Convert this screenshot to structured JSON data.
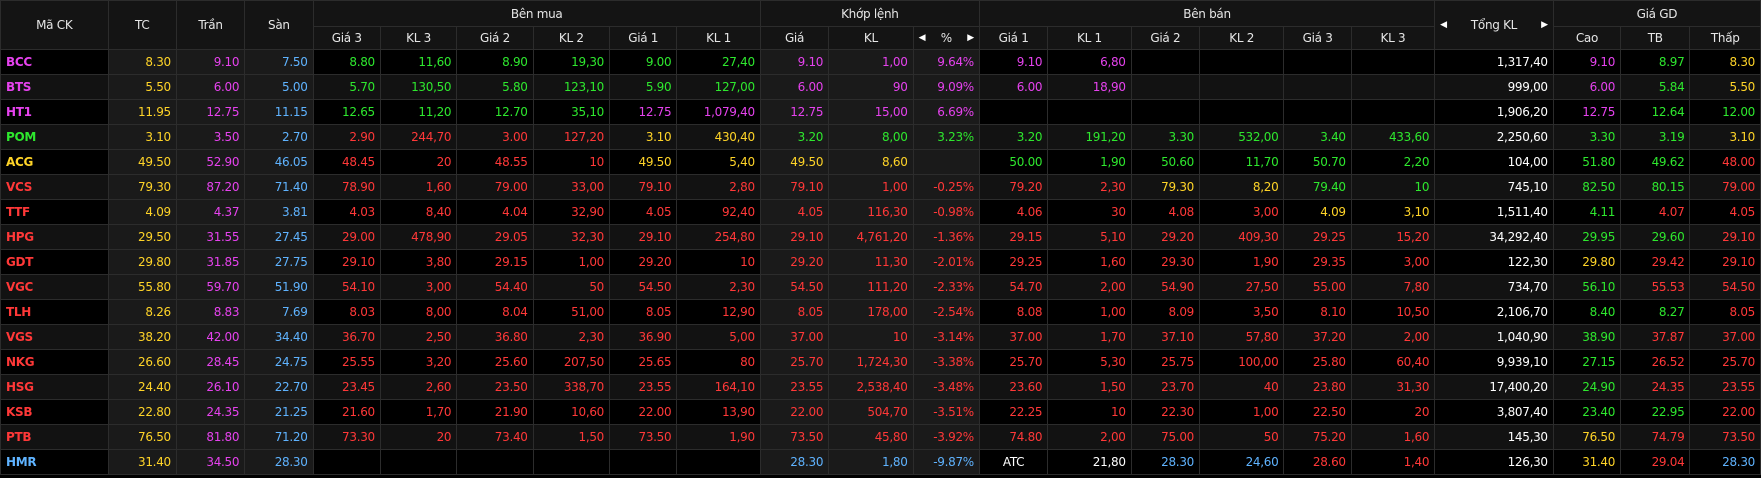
{
  "colors": {
    "up": "#2ee82e",
    "down": "#ff3838",
    "ceiling": "#e642ee",
    "floor": "#5fb3ff",
    "ref": "#ffd428"
  },
  "headers": {
    "symbol": "Mã CK",
    "ref": "TC",
    "ceil": "Trần",
    "floor": "Sàn",
    "buy_group": "Bên mua",
    "match_group": "Khớp lệnh",
    "sell_group": "Bên bán",
    "total_vol": "Tổng KL",
    "price_group": "Giá GD",
    "buy_cols": [
      "Giá 3",
      "KL 3",
      "Giá 2",
      "KL 2",
      "Giá 1",
      "KL 1"
    ],
    "match_cols": [
      "Giá",
      "KL",
      "%"
    ],
    "sell_cols": [
      "Giá 1",
      "KL 1",
      "Giá 2",
      "KL 2",
      "Giá 3",
      "KL 3"
    ],
    "price_cols": [
      "Cao",
      "TB",
      "Thấp"
    ],
    "icons": {
      "left": "caret-left-icon",
      "right": "caret-right-icon"
    }
  },
  "rows": [
    {
      "sym": "BCC",
      "sc": "ce",
      "tc": "8.30",
      "tran": "9.10",
      "san": "7.50",
      "b3p": [
        "8.80",
        "up"
      ],
      "b3v": [
        "11,60",
        "up"
      ],
      "b2p": [
        "8.90",
        "up"
      ],
      "b2v": [
        "19,30",
        "up"
      ],
      "b1p": [
        "9.00",
        "up"
      ],
      "b1v": [
        "27,40",
        "up"
      ],
      "mp": [
        "9.10",
        "ce"
      ],
      "mv": [
        "1,00",
        "ce"
      ],
      "mpct": [
        "9.64%",
        "ce"
      ],
      "s1p": [
        "9.10",
        "ce"
      ],
      "s1v": [
        "6,80",
        "ce"
      ],
      "s2p": [
        "",
        ""
      ],
      "s2v": [
        "",
        ""
      ],
      "s3p": [
        "",
        ""
      ],
      "s3v": [
        "",
        ""
      ],
      "tot": "1,317,40",
      "hi": [
        "9.10",
        "ce"
      ],
      "avg": [
        "8.97",
        "up"
      ],
      "lo": [
        "8.30",
        "ref"
      ]
    },
    {
      "sym": "BTS",
      "sc": "ce",
      "tc": "5.50",
      "tran": "6.00",
      "san": "5.00",
      "b3p": [
        "5.70",
        "up"
      ],
      "b3v": [
        "130,50",
        "up"
      ],
      "b2p": [
        "5.80",
        "up"
      ],
      "b2v": [
        "123,10",
        "up"
      ],
      "b1p": [
        "5.90",
        "up"
      ],
      "b1v": [
        "127,00",
        "up"
      ],
      "mp": [
        "6.00",
        "ce"
      ],
      "mv": [
        "90",
        "ce"
      ],
      "mpct": [
        "9.09%",
        "ce"
      ],
      "s1p": [
        "6.00",
        "ce"
      ],
      "s1v": [
        "18,90",
        "ce"
      ],
      "s2p": [
        "",
        ""
      ],
      "s2v": [
        "",
        ""
      ],
      "s3p": [
        "",
        ""
      ],
      "s3v": [
        "",
        ""
      ],
      "tot": "999,00",
      "hi": [
        "6.00",
        "ce"
      ],
      "avg": [
        "5.84",
        "up"
      ],
      "lo": [
        "5.50",
        "ref"
      ]
    },
    {
      "sym": "HT1",
      "sc": "ce",
      "tc": "11.95",
      "tran": "12.75",
      "san": "11.15",
      "b3p": [
        "12.65",
        "up"
      ],
      "b3v": [
        "11,20",
        "up"
      ],
      "b2p": [
        "12.70",
        "up"
      ],
      "b2v": [
        "35,10",
        "up"
      ],
      "b1p": [
        "12.75",
        "ce"
      ],
      "b1v": [
        "1,079,40",
        "ce"
      ],
      "mp": [
        "12.75",
        "ce"
      ],
      "mv": [
        "15,00",
        "ce"
      ],
      "mpct": [
        "6.69%",
        "ce"
      ],
      "s1p": [
        "",
        ""
      ],
      "s1v": [
        "",
        ""
      ],
      "s2p": [
        "",
        ""
      ],
      "s2v": [
        "",
        ""
      ],
      "s3p": [
        "",
        ""
      ],
      "s3v": [
        "",
        ""
      ],
      "tot": "1,906,20",
      "hi": [
        "12.75",
        "ce"
      ],
      "avg": [
        "12.64",
        "up"
      ],
      "lo": [
        "12.00",
        "up"
      ]
    },
    {
      "sym": "POM",
      "sc": "up",
      "tc": "3.10",
      "tran": "3.50",
      "san": "2.70",
      "b3p": [
        "2.90",
        "dn"
      ],
      "b3v": [
        "244,70",
        "dn"
      ],
      "b2p": [
        "3.00",
        "dn"
      ],
      "b2v": [
        "127,20",
        "dn"
      ],
      "b1p": [
        "3.10",
        "ref"
      ],
      "b1v": [
        "430,40",
        "ref"
      ],
      "mp": [
        "3.20",
        "up"
      ],
      "mv": [
        "8,00",
        "up"
      ],
      "mpct": [
        "3.23%",
        "up"
      ],
      "s1p": [
        "3.20",
        "up"
      ],
      "s1v": [
        "191,20",
        "up"
      ],
      "s2p": [
        "3.30",
        "up"
      ],
      "s2v": [
        "532,00",
        "up"
      ],
      "s3p": [
        "3.40",
        "up"
      ],
      "s3v": [
        "433,60",
        "up"
      ],
      "tot": "2,250,60",
      "hi": [
        "3.30",
        "up"
      ],
      "avg": [
        "3.19",
        "up"
      ],
      "lo": [
        "3.10",
        "ref"
      ]
    },
    {
      "sym": "ACG",
      "sc": "ref",
      "tc": "49.50",
      "tran": "52.90",
      "san": "46.05",
      "b3p": [
        "48.45",
        "dn"
      ],
      "b3v": [
        "20",
        "dn"
      ],
      "b2p": [
        "48.55",
        "dn"
      ],
      "b2v": [
        "10",
        "dn"
      ],
      "b1p": [
        "49.50",
        "ref"
      ],
      "b1v": [
        "5,40",
        "ref"
      ],
      "mp": [
        "49.50",
        "ref"
      ],
      "mv": [
        "8,60",
        "ref"
      ],
      "mpct": [
        "",
        ""
      ],
      "s1p": [
        "50.00",
        "up"
      ],
      "s1v": [
        "1,90",
        "up"
      ],
      "s2p": [
        "50.60",
        "up"
      ],
      "s2v": [
        "11,70",
        "up"
      ],
      "s3p": [
        "50.70",
        "up"
      ],
      "s3v": [
        "2,20",
        "up"
      ],
      "tot": "104,00",
      "hi": [
        "51.80",
        "up"
      ],
      "avg": [
        "49.62",
        "up"
      ],
      "lo": [
        "48.00",
        "dn"
      ]
    },
    {
      "sym": "VCS",
      "sc": "dn",
      "tc": "79.30",
      "tran": "87.20",
      "san": "71.40",
      "b3p": [
        "78.90",
        "dn"
      ],
      "b3v": [
        "1,60",
        "dn"
      ],
      "b2p": [
        "79.00",
        "dn"
      ],
      "b2v": [
        "33,00",
        "dn"
      ],
      "b1p": [
        "79.10",
        "dn"
      ],
      "b1v": [
        "2,80",
        "dn"
      ],
      "mp": [
        "79.10",
        "dn"
      ],
      "mv": [
        "1,00",
        "dn"
      ],
      "mpct": [
        "-0.25%",
        "dn"
      ],
      "s1p": [
        "79.20",
        "dn"
      ],
      "s1v": [
        "2,30",
        "dn"
      ],
      "s2p": [
        "79.30",
        "ref"
      ],
      "s2v": [
        "8,20",
        "ref"
      ],
      "s3p": [
        "79.40",
        "up"
      ],
      "s3v": [
        "10",
        "up"
      ],
      "tot": "745,10",
      "hi": [
        "82.50",
        "up"
      ],
      "avg": [
        "80.15",
        "up"
      ],
      "lo": [
        "79.00",
        "dn"
      ]
    },
    {
      "sym": "TTF",
      "sc": "dn",
      "tc": "4.09",
      "tran": "4.37",
      "san": "3.81",
      "b3p": [
        "4.03",
        "dn"
      ],
      "b3v": [
        "8,40",
        "dn"
      ],
      "b2p": [
        "4.04",
        "dn"
      ],
      "b2v": [
        "32,90",
        "dn"
      ],
      "b1p": [
        "4.05",
        "dn"
      ],
      "b1v": [
        "92,40",
        "dn"
      ],
      "mp": [
        "4.05",
        "dn"
      ],
      "mv": [
        "116,30",
        "dn"
      ],
      "mpct": [
        "-0.98%",
        "dn"
      ],
      "s1p": [
        "4.06",
        "dn"
      ],
      "s1v": [
        "30",
        "dn"
      ],
      "s2p": [
        "4.08",
        "dn"
      ],
      "s2v": [
        "3,00",
        "dn"
      ],
      "s3p": [
        "4.09",
        "ref"
      ],
      "s3v": [
        "3,10",
        "ref"
      ],
      "tot": "1,511,40",
      "hi": [
        "4.11",
        "up"
      ],
      "avg": [
        "4.07",
        "dn"
      ],
      "lo": [
        "4.05",
        "dn"
      ]
    },
    {
      "sym": "HPG",
      "sc": "dn",
      "tc": "29.50",
      "tran": "31.55",
      "san": "27.45",
      "b3p": [
        "29.00",
        "dn"
      ],
      "b3v": [
        "478,90",
        "dn"
      ],
      "b2p": [
        "29.05",
        "dn"
      ],
      "b2v": [
        "32,30",
        "dn"
      ],
      "b1p": [
        "29.10",
        "dn"
      ],
      "b1v": [
        "254,80",
        "dn"
      ],
      "mp": [
        "29.10",
        "dn"
      ],
      "mv": [
        "4,761,20",
        "dn"
      ],
      "mpct": [
        "-1.36%",
        "dn"
      ],
      "s1p": [
        "29.15",
        "dn"
      ],
      "s1v": [
        "5,10",
        "dn"
      ],
      "s2p": [
        "29.20",
        "dn"
      ],
      "s2v": [
        "409,30",
        "dn"
      ],
      "s3p": [
        "29.25",
        "dn"
      ],
      "s3v": [
        "15,20",
        "dn"
      ],
      "tot": "34,292,40",
      "hi": [
        "29.95",
        "up"
      ],
      "avg": [
        "29.60",
        "up"
      ],
      "lo": [
        "29.10",
        "dn"
      ]
    },
    {
      "sym": "GDT",
      "sc": "dn",
      "tc": "29.80",
      "tran": "31.85",
      "san": "27.75",
      "b3p": [
        "29.10",
        "dn"
      ],
      "b3v": [
        "3,80",
        "dn"
      ],
      "b2p": [
        "29.15",
        "dn"
      ],
      "b2v": [
        "1,00",
        "dn"
      ],
      "b1p": [
        "29.20",
        "dn"
      ],
      "b1v": [
        "10",
        "dn"
      ],
      "mp": [
        "29.20",
        "dn"
      ],
      "mv": [
        "11,30",
        "dn"
      ],
      "mpct": [
        "-2.01%",
        "dn"
      ],
      "s1p": [
        "29.25",
        "dn"
      ],
      "s1v": [
        "1,60",
        "dn"
      ],
      "s2p": [
        "29.30",
        "dn"
      ],
      "s2v": [
        "1,90",
        "dn"
      ],
      "s3p": [
        "29.35",
        "dn"
      ],
      "s3v": [
        "3,00",
        "dn"
      ],
      "tot": "122,30",
      "hi": [
        "29.80",
        "ref"
      ],
      "avg": [
        "29.42",
        "dn"
      ],
      "lo": [
        "29.10",
        "dn"
      ]
    },
    {
      "sym": "VGC",
      "sc": "dn",
      "tc": "55.80",
      "tran": "59.70",
      "san": "51.90",
      "b3p": [
        "54.10",
        "dn"
      ],
      "b3v": [
        "3,00",
        "dn"
      ],
      "b2p": [
        "54.40",
        "dn"
      ],
      "b2v": [
        "50",
        "dn"
      ],
      "b1p": [
        "54.50",
        "dn"
      ],
      "b1v": [
        "2,30",
        "dn"
      ],
      "mp": [
        "54.50",
        "dn"
      ],
      "mv": [
        "111,20",
        "dn"
      ],
      "mpct": [
        "-2.33%",
        "dn"
      ],
      "s1p": [
        "54.70",
        "dn"
      ],
      "s1v": [
        "2,00",
        "dn"
      ],
      "s2p": [
        "54.90",
        "dn"
      ],
      "s2v": [
        "27,50",
        "dn"
      ],
      "s3p": [
        "55.00",
        "dn"
      ],
      "s3v": [
        "7,80",
        "dn"
      ],
      "tot": "734,70",
      "hi": [
        "56.10",
        "up"
      ],
      "avg": [
        "55.53",
        "dn"
      ],
      "lo": [
        "54.50",
        "dn"
      ]
    },
    {
      "sym": "TLH",
      "sc": "dn",
      "tc": "8.26",
      "tran": "8.83",
      "san": "7.69",
      "b3p": [
        "8.03",
        "dn"
      ],
      "b3v": [
        "8,00",
        "dn"
      ],
      "b2p": [
        "8.04",
        "dn"
      ],
      "b2v": [
        "51,00",
        "dn"
      ],
      "b1p": [
        "8.05",
        "dn"
      ],
      "b1v": [
        "12,90",
        "dn"
      ],
      "mp": [
        "8.05",
        "dn"
      ],
      "mv": [
        "178,00",
        "dn"
      ],
      "mpct": [
        "-2.54%",
        "dn"
      ],
      "s1p": [
        "8.08",
        "dn"
      ],
      "s1v": [
        "1,00",
        "dn"
      ],
      "s2p": [
        "8.09",
        "dn"
      ],
      "s2v": [
        "3,50",
        "dn"
      ],
      "s3p": [
        "8.10",
        "dn"
      ],
      "s3v": [
        "10,50",
        "dn"
      ],
      "tot": "2,106,70",
      "hi": [
        "8.40",
        "up"
      ],
      "avg": [
        "8.27",
        "up"
      ],
      "lo": [
        "8.05",
        "dn"
      ]
    },
    {
      "sym": "VGS",
      "sc": "dn",
      "tc": "38.20",
      "tran": "42.00",
      "san": "34.40",
      "b3p": [
        "36.70",
        "dn"
      ],
      "b3v": [
        "2,50",
        "dn"
      ],
      "b2p": [
        "36.80",
        "dn"
      ],
      "b2v": [
        "2,30",
        "dn"
      ],
      "b1p": [
        "36.90",
        "dn"
      ],
      "b1v": [
        "5,00",
        "dn"
      ],
      "mp": [
        "37.00",
        "dn"
      ],
      "mv": [
        "10",
        "dn"
      ],
      "mpct": [
        "-3.14%",
        "dn"
      ],
      "s1p": [
        "37.00",
        "dn"
      ],
      "s1v": [
        "1,70",
        "dn"
      ],
      "s2p": [
        "37.10",
        "dn"
      ],
      "s2v": [
        "57,80",
        "dn"
      ],
      "s3p": [
        "37.20",
        "dn"
      ],
      "s3v": [
        "2,00",
        "dn"
      ],
      "tot": "1,040,90",
      "hi": [
        "38.90",
        "up"
      ],
      "avg": [
        "37.87",
        "dn"
      ],
      "lo": [
        "37.00",
        "dn"
      ]
    },
    {
      "sym": "NKG",
      "sc": "dn",
      "tc": "26.60",
      "tran": "28.45",
      "san": "24.75",
      "b3p": [
        "25.55",
        "dn"
      ],
      "b3v": [
        "3,20",
        "dn"
      ],
      "b2p": [
        "25.60",
        "dn"
      ],
      "b2v": [
        "207,50",
        "dn"
      ],
      "b1p": [
        "25.65",
        "dn"
      ],
      "b1v": [
        "80",
        "dn"
      ],
      "mp": [
        "25.70",
        "dn"
      ],
      "mv": [
        "1,724,30",
        "dn"
      ],
      "mpct": [
        "-3.38%",
        "dn"
      ],
      "s1p": [
        "25.70",
        "dn"
      ],
      "s1v": [
        "5,30",
        "dn"
      ],
      "s2p": [
        "25.75",
        "dn"
      ],
      "s2v": [
        "100,00",
        "dn"
      ],
      "s3p": [
        "25.80",
        "dn"
      ],
      "s3v": [
        "60,40",
        "dn"
      ],
      "tot": "9,939,10",
      "hi": [
        "27.15",
        "up"
      ],
      "avg": [
        "26.52",
        "dn"
      ],
      "lo": [
        "25.70",
        "dn"
      ]
    },
    {
      "sym": "HSG",
      "sc": "dn",
      "tc": "24.40",
      "tran": "26.10",
      "san": "22.70",
      "b3p": [
        "23.45",
        "dn"
      ],
      "b3v": [
        "2,60",
        "dn"
      ],
      "b2p": [
        "23.50",
        "dn"
      ],
      "b2v": [
        "338,70",
        "dn"
      ],
      "b1p": [
        "23.55",
        "dn"
      ],
      "b1v": [
        "164,10",
        "dn"
      ],
      "mp": [
        "23.55",
        "dn"
      ],
      "mv": [
        "2,538,40",
        "dn"
      ],
      "mpct": [
        "-3.48%",
        "dn"
      ],
      "s1p": [
        "23.60",
        "dn"
      ],
      "s1v": [
        "1,50",
        "dn"
      ],
      "s2p": [
        "23.70",
        "dn"
      ],
      "s2v": [
        "40",
        "dn"
      ],
      "s3p": [
        "23.80",
        "dn"
      ],
      "s3v": [
        "31,30",
        "dn"
      ],
      "tot": "17,400,20",
      "hi": [
        "24.90",
        "up"
      ],
      "avg": [
        "24.35",
        "dn"
      ],
      "lo": [
        "23.55",
        "dn"
      ]
    },
    {
      "sym": "KSB",
      "sc": "dn",
      "tc": "22.80",
      "tran": "24.35",
      "san": "21.25",
      "b3p": [
        "21.60",
        "dn"
      ],
      "b3v": [
        "1,70",
        "dn"
      ],
      "b2p": [
        "21.90",
        "dn"
      ],
      "b2v": [
        "10,60",
        "dn"
      ],
      "b1p": [
        "22.00",
        "dn"
      ],
      "b1v": [
        "13,90",
        "dn"
      ],
      "mp": [
        "22.00",
        "dn"
      ],
      "mv": [
        "504,70",
        "dn"
      ],
      "mpct": [
        "-3.51%",
        "dn"
      ],
      "s1p": [
        "22.25",
        "dn"
      ],
      "s1v": [
        "10",
        "dn"
      ],
      "s2p": [
        "22.30",
        "dn"
      ],
      "s2v": [
        "1,00",
        "dn"
      ],
      "s3p": [
        "22.50",
        "dn"
      ],
      "s3v": [
        "20",
        "dn"
      ],
      "tot": "3,807,40",
      "hi": [
        "23.40",
        "up"
      ],
      "avg": [
        "22.95",
        "up"
      ],
      "lo": [
        "22.00",
        "dn"
      ]
    },
    {
      "sym": "PTB",
      "sc": "dn",
      "tc": "76.50",
      "tran": "81.80",
      "san": "71.20",
      "b3p": [
        "73.30",
        "dn"
      ],
      "b3v": [
        "20",
        "dn"
      ],
      "b2p": [
        "73.40",
        "dn"
      ],
      "b2v": [
        "1,50",
        "dn"
      ],
      "b1p": [
        "73.50",
        "dn"
      ],
      "b1v": [
        "1,90",
        "dn"
      ],
      "mp": [
        "73.50",
        "dn"
      ],
      "mv": [
        "45,80",
        "dn"
      ],
      "mpct": [
        "-3.92%",
        "dn"
      ],
      "s1p": [
        "74.80",
        "dn"
      ],
      "s1v": [
        "2,00",
        "dn"
      ],
      "s2p": [
        "75.00",
        "dn"
      ],
      "s2v": [
        "50",
        "dn"
      ],
      "s3p": [
        "75.20",
        "dn"
      ],
      "s3v": [
        "1,60",
        "dn"
      ],
      "tot": "145,30",
      "hi": [
        "76.50",
        "ref"
      ],
      "avg": [
        "74.79",
        "dn"
      ],
      "lo": [
        "73.50",
        "dn"
      ]
    },
    {
      "sym": "HMR",
      "sc": "fl",
      "tc": "31.40",
      "tran": "34.50",
      "san": "28.30",
      "b3p": [
        "",
        ""
      ],
      "b3v": [
        "",
        ""
      ],
      "b2p": [
        "",
        ""
      ],
      "b2v": [
        "",
        ""
      ],
      "b1p": [
        "",
        ""
      ],
      "b1v": [
        "",
        ""
      ],
      "mp": [
        "28.30",
        "fl"
      ],
      "mv": [
        "1,80",
        "fl"
      ],
      "mpct": [
        "-9.87%",
        "fl"
      ],
      "s1p": [
        "ATC",
        "wh"
      ],
      "s1v": [
        "21,80",
        "wh"
      ],
      "s2p": [
        "28.30",
        "fl"
      ],
      "s2v": [
        "24,60",
        "fl"
      ],
      "s3p": [
        "28.60",
        "dn"
      ],
      "s3v": [
        "1,40",
        "dn"
      ],
      "tot": "126,30",
      "hi": [
        "31.40",
        "ref"
      ],
      "avg": [
        "29.04",
        "dn"
      ],
      "lo": [
        "28.30",
        "fl"
      ]
    }
  ]
}
